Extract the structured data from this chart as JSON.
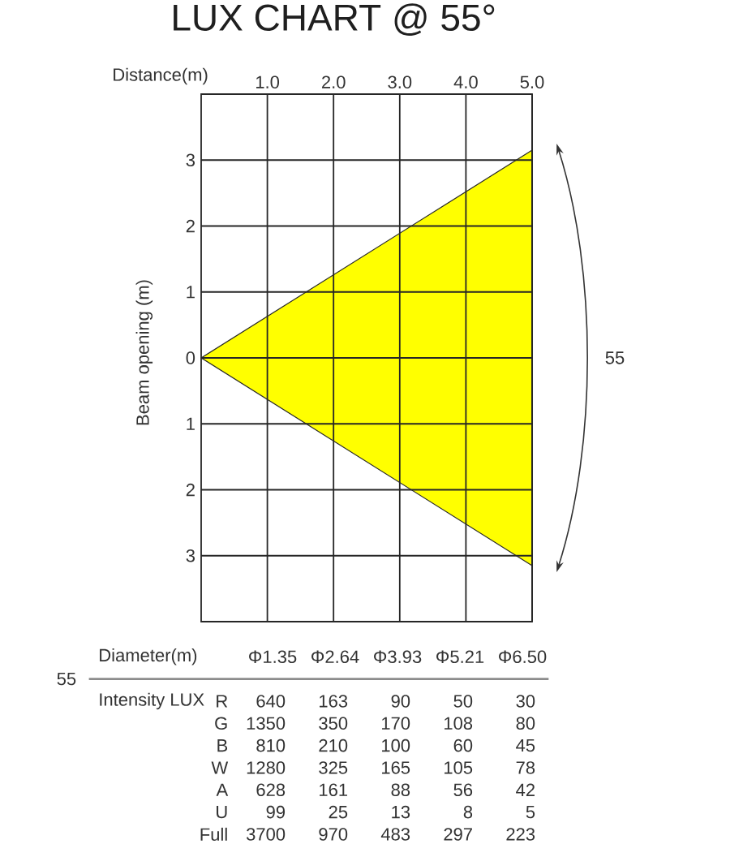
{
  "chart_data": [
    {
      "type": "area",
      "title": "LUX CHART @ 55°",
      "xlabel": "Distance(m)",
      "ylabel": "Beam opening (m)",
      "x": [
        0,
        5
      ],
      "series": [
        {
          "color": "#ffff00",
          "values": [
            null,
            null
          ],
          "lower": [
            0,
            -3.15
          ],
          "upper": [
            0,
            3.15
          ]
        }
      ],
      "xlim": [
        0,
        5
      ],
      "xticks": [
        {
          "value": 1,
          "label": "1.0"
        },
        {
          "value": 2,
          "label": "2.0"
        },
        {
          "value": 3,
          "label": "3.0"
        },
        {
          "value": 4,
          "label": "4.0"
        },
        {
          "value": 5,
          "label": "5.0"
        }
      ],
      "ylim": [
        -4,
        4
      ],
      "yticks": [
        {
          "value": -3,
          "label": "3"
        },
        {
          "value": -2,
          "label": "2"
        },
        {
          "value": -1,
          "label": "1"
        },
        0,
        1,
        2,
        3
      ],
      "grid": true,
      "annotations": [
        "55"
      ]
    },
    {
      "type": "other",
      "xlabel": "Diameter(m)",
      "ylabel": "Intensity LUX",
      "categories": [
        "Φ1.35",
        "Φ2.64",
        "Φ3.93",
        "Φ5.21",
        "Φ6.50"
      ],
      "series": [
        {
          "name": "R",
          "values": [
            640,
            163,
            90,
            50,
            30
          ]
        },
        {
          "name": "G",
          "values": [
            1350,
            350,
            170,
            108,
            80
          ]
        },
        {
          "name": "B",
          "values": [
            810,
            210,
            100,
            60,
            45
          ]
        },
        {
          "name": "W",
          "values": [
            1280,
            325,
            165,
            105,
            78
          ]
        },
        {
          "name": "A",
          "values": [
            628,
            161,
            88,
            56,
            42
          ]
        },
        {
          "name": "U",
          "values": [
            99,
            25,
            13,
            8,
            5
          ]
        },
        {
          "name": "Full",
          "values": [
            3700,
            970,
            483,
            297,
            223
          ]
        }
      ],
      "data_labels": true,
      "annotations": [
        "55"
      ]
    }
  ]
}
